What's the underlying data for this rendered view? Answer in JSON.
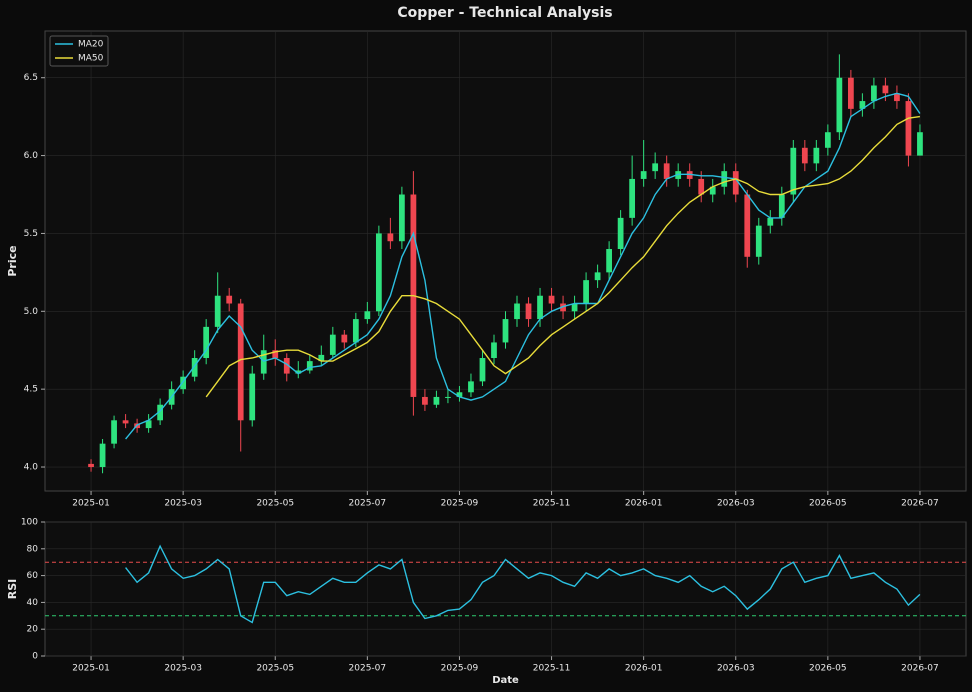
{
  "chart_data": [
    {
      "type": "candlestick",
      "title": "Copper - Technical Analysis",
      "ylabel": "Price",
      "xlim": [
        "2024-12",
        "2026-08"
      ],
      "xticks": [
        "2025-01",
        "2025-03",
        "2025-05",
        "2025-07",
        "2025-09",
        "2025-11",
        "2026-01",
        "2026-03",
        "2026-05",
        "2026-07"
      ],
      "ylim": [
        3.846,
        6.8
      ],
      "yticks": [
        {
          "value": 4,
          "label": "4.0"
        },
        4.5,
        {
          "value": 5,
          "label": "5.0"
        },
        5.5,
        {
          "value": 6,
          "label": "6.0"
        },
        6.5
      ],
      "grid": true,
      "legend": "upper left",
      "up_color": "#2ee37f",
      "down_color": "#ef4650",
      "open": [
        4.02,
        4.0,
        4.15,
        4.3,
        4.28,
        4.25,
        4.3,
        4.4,
        4.5,
        4.58,
        4.7,
        4.9,
        5.1,
        5.05,
        4.3,
        4.6,
        4.75,
        4.7,
        4.6,
        4.62,
        4.68,
        4.72,
        4.85,
        4.8,
        4.95,
        5.0,
        5.5,
        5.45,
        5.75,
        4.45,
        4.4,
        4.45,
        4.45,
        4.48,
        4.55,
        4.7,
        4.8,
        4.95,
        5.05,
        4.95,
        5.1,
        5.05,
        5.0,
        5.05,
        5.2,
        5.25,
        5.4,
        5.6,
        5.85,
        5.9,
        5.95,
        5.85,
        5.9,
        5.85,
        5.75,
        5.8,
        5.9,
        5.75,
        5.35,
        5.55,
        5.6,
        5.75,
        6.05,
        5.95,
        6.05,
        6.15,
        6.5,
        6.3,
        6.35,
        6.45,
        6.4,
        6.35,
        6.0
      ],
      "high": [
        4.05,
        4.18,
        4.33,
        4.34,
        4.31,
        4.34,
        4.44,
        4.55,
        4.62,
        4.75,
        4.95,
        5.25,
        5.15,
        5.08,
        4.65,
        4.85,
        4.82,
        4.73,
        4.68,
        4.72,
        4.78,
        4.9,
        4.88,
        4.99,
        5.06,
        5.55,
        5.6,
        5.8,
        5.9,
        4.5,
        4.49,
        4.5,
        4.52,
        4.6,
        4.75,
        4.85,
        5.0,
        5.1,
        5.09,
        5.15,
        5.15,
        5.1,
        5.1,
        5.25,
        5.3,
        5.45,
        5.65,
        6.0,
        6.1,
        6.02,
        6.0,
        5.95,
        5.95,
        5.9,
        5.85,
        5.95,
        5.95,
        5.78,
        5.6,
        5.65,
        5.8,
        6.1,
        6.1,
        6.1,
        6.2,
        6.65,
        6.55,
        6.4,
        6.5,
        6.5,
        6.45,
        6.4,
        6.2
      ],
      "low": [
        3.97,
        3.96,
        4.12,
        4.25,
        4.22,
        4.22,
        4.27,
        4.37,
        4.47,
        4.55,
        4.66,
        4.86,
        5.0,
        4.1,
        4.26,
        4.56,
        4.65,
        4.55,
        4.57,
        4.6,
        4.65,
        4.7,
        4.76,
        4.77,
        4.92,
        4.97,
        5.4,
        5.4,
        4.33,
        4.36,
        4.38,
        4.41,
        4.42,
        4.45,
        4.52,
        4.66,
        4.76,
        4.9,
        4.9,
        4.9,
        5.0,
        4.95,
        4.95,
        5.0,
        5.15,
        5.2,
        5.36,
        5.55,
        5.8,
        5.85,
        5.8,
        5.8,
        5.8,
        5.7,
        5.7,
        5.75,
        5.7,
        5.28,
        5.3,
        5.5,
        5.55,
        5.7,
        5.9,
        5.9,
        6.0,
        6.1,
        6.25,
        6.25,
        6.3,
        6.35,
        6.3,
        5.93,
        6.0
      ],
      "close": [
        4.0,
        4.15,
        4.3,
        4.28,
        4.25,
        4.3,
        4.4,
        4.5,
        4.58,
        4.7,
        4.9,
        5.1,
        5.05,
        4.3,
        4.6,
        4.75,
        4.7,
        4.6,
        4.62,
        4.68,
        4.72,
        4.85,
        4.8,
        4.95,
        5.0,
        5.5,
        5.45,
        5.75,
        4.45,
        4.4,
        4.45,
        4.45,
        4.48,
        4.55,
        4.7,
        4.8,
        4.95,
        5.05,
        4.95,
        5.1,
        5.05,
        5.0,
        5.05,
        5.2,
        5.25,
        5.4,
        5.6,
        5.85,
        5.9,
        5.95,
        5.85,
        5.9,
        5.85,
        5.75,
        5.8,
        5.9,
        5.75,
        5.35,
        5.55,
        5.6,
        5.75,
        6.05,
        5.95,
        6.05,
        6.15,
        6.5,
        6.3,
        6.35,
        6.45,
        6.4,
        6.35,
        6.0,
        6.15
      ],
      "series": [
        {
          "name": "MA20",
          "color": "#2cc0e0",
          "values": [
            null,
            null,
            null,
            4.18,
            4.27,
            4.3,
            4.36,
            4.45,
            4.55,
            4.65,
            4.75,
            4.88,
            4.97,
            4.9,
            4.75,
            4.68,
            4.7,
            4.66,
            4.6,
            4.64,
            4.65,
            4.7,
            4.75,
            4.8,
            4.85,
            4.95,
            5.1,
            5.35,
            5.5,
            5.2,
            4.7,
            4.5,
            4.45,
            4.43,
            4.45,
            4.5,
            4.55,
            4.7,
            4.85,
            4.95,
            5.0,
            5.03,
            5.05,
            5.05,
            5.05,
            5.2,
            5.35,
            5.5,
            5.6,
            5.75,
            5.85,
            5.88,
            5.88,
            5.87,
            5.87,
            5.86,
            5.85,
            5.75,
            5.65,
            5.6,
            5.6,
            5.7,
            5.8,
            5.85,
            5.9,
            6.05,
            6.25,
            6.3,
            6.35,
            6.38,
            6.4,
            6.38,
            6.27
          ]
        },
        {
          "name": "MA50",
          "color": "#e8dc3a",
          "values": [
            null,
            null,
            null,
            null,
            null,
            null,
            null,
            null,
            null,
            null,
            4.45,
            4.55,
            4.65,
            4.69,
            4.7,
            4.72,
            4.74,
            4.75,
            4.75,
            4.72,
            4.68,
            4.68,
            4.72,
            4.76,
            4.8,
            4.87,
            5.0,
            5.1,
            5.1,
            5.08,
            5.05,
            5.0,
            4.95,
            4.85,
            4.75,
            4.65,
            4.6,
            4.65,
            4.7,
            4.78,
            4.85,
            4.9,
            4.95,
            5.0,
            5.05,
            5.12,
            5.2,
            5.28,
            5.35,
            5.45,
            5.55,
            5.63,
            5.7,
            5.75,
            5.8,
            5.83,
            5.85,
            5.82,
            5.77,
            5.75,
            5.75,
            5.78,
            5.8,
            5.81,
            5.82,
            5.85,
            5.9,
            5.97,
            6.05,
            6.12,
            6.2,
            6.24,
            6.25
          ]
        }
      ]
    },
    {
      "type": "line",
      "ylabel": "RSI",
      "xlabel": "Date",
      "xlim": [
        "2024-12",
        "2026-08"
      ],
      "xticks": [
        "2025-01",
        "2025-03",
        "2025-05",
        "2025-07",
        "2025-09",
        "2025-11",
        "2026-01",
        "2026-03",
        "2026-05",
        "2026-07"
      ],
      "ylim": [
        0,
        100
      ],
      "yticks": [
        0,
        20,
        40,
        60,
        80,
        100
      ],
      "grid": true,
      "reference_lines": [
        {
          "value": 70,
          "color": "#e74c4c"
        },
        {
          "value": 30,
          "color": "#2ecc71"
        }
      ],
      "color": "#2cc0e0",
      "values": [
        null,
        null,
        null,
        66,
        55,
        62,
        82,
        65,
        58,
        60,
        65,
        72,
        65,
        30,
        25,
        55,
        55,
        45,
        48,
        46,
        52,
        58,
        55,
        55,
        62,
        68,
        65,
        72,
        40,
        28,
        30,
        34,
        35,
        42,
        55,
        60,
        72,
        65,
        58,
        62,
        60,
        55,
        52,
        62,
        58,
        65,
        60,
        62,
        65,
        60,
        58,
        55,
        60,
        52,
        48,
        52,
        45,
        35,
        42,
        50,
        65,
        70,
        55,
        58,
        60,
        75,
        58,
        60,
        62,
        55,
        50,
        38,
        46
      ]
    }
  ]
}
